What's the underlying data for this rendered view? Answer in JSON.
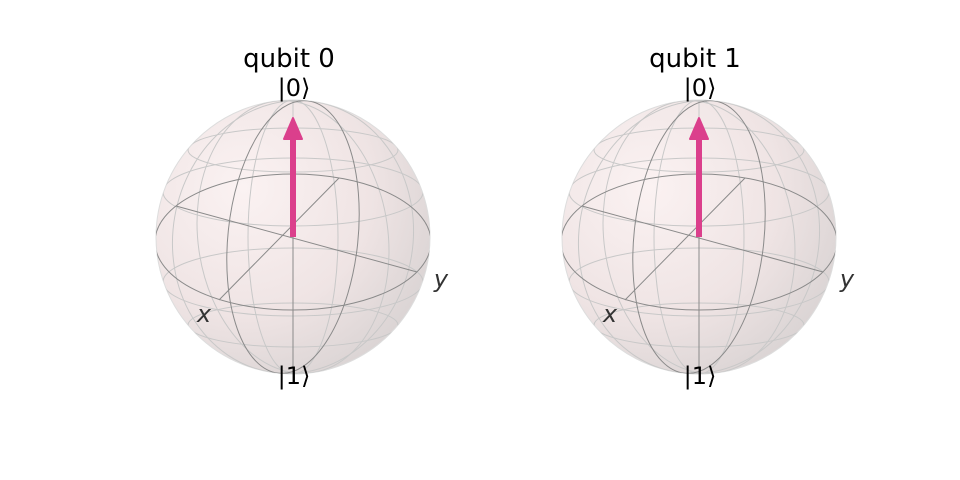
{
  "figure": {
    "spheres": [
      {
        "title": "qubit 0",
        "pole_top": "|0⟩",
        "pole_bottom": "|1⟩",
        "axis_x": "x",
        "axis_y": "y",
        "state_vector": {
          "x": 0,
          "y": 0,
          "z": 1
        }
      },
      {
        "title": "qubit 1",
        "pole_top": "|0⟩",
        "pole_bottom": "|1⟩",
        "axis_x": "x",
        "axis_y": "y",
        "state_vector": {
          "x": 0,
          "y": 0,
          "z": 1
        }
      }
    ],
    "colors": {
      "vector": "#db3f8c",
      "sphere_light": "#f6e9e9",
      "sphere_dark": "#d6d1d1",
      "wire_front": "#8a8a8a",
      "wire_back": "#c8c8c8"
    }
  }
}
